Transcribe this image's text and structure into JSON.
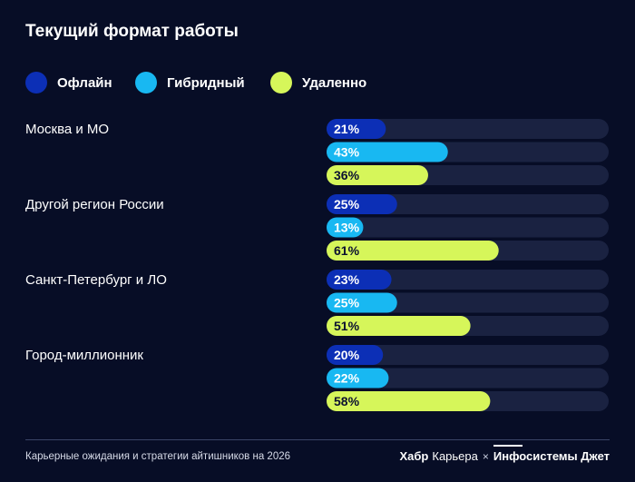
{
  "title": "Текущий формат работы",
  "legend": [
    {
      "label": "Офлайн",
      "color": "#0c2fb6"
    },
    {
      "label": "Гибридный",
      "color": "#18b8f2"
    },
    {
      "label": "Удаленно",
      "color": "#d6f65a"
    }
  ],
  "chart_data": {
    "type": "bar",
    "orientation": "horizontal",
    "categories": [
      "Москва и МО",
      "Другой регион России",
      "Санкт-Петербург и ЛО",
      "Город-миллионник"
    ],
    "series": [
      {
        "name": "Офлайн",
        "color": "#0c2fb6",
        "values": [
          21,
          25,
          23,
          20
        ],
        "labels": [
          "21%",
          "25%",
          "23%",
          "20%"
        ]
      },
      {
        "name": "Гибридный",
        "color": "#18b8f2",
        "values": [
          43,
          13,
          25,
          22
        ],
        "labels": [
          "43%",
          "13%",
          "25%",
          "22%"
        ]
      },
      {
        "name": "Удаленно",
        "color": "#d6f65a",
        "values": [
          36,
          61,
          51,
          58
        ],
        "labels": [
          "36%",
          "61%",
          "51%",
          "58%"
        ]
      }
    ],
    "xlim": [
      0,
      100
    ],
    "track_color": "#1a2241",
    "grid": false
  },
  "footer": {
    "source": "Карьерные ожидания и стратегии айтишников на 2026",
    "brand_habr": "Хабр",
    "brand_career": "Карьера",
    "brand_separator": "×",
    "brand_partner": "Инфосистемы Джет"
  }
}
